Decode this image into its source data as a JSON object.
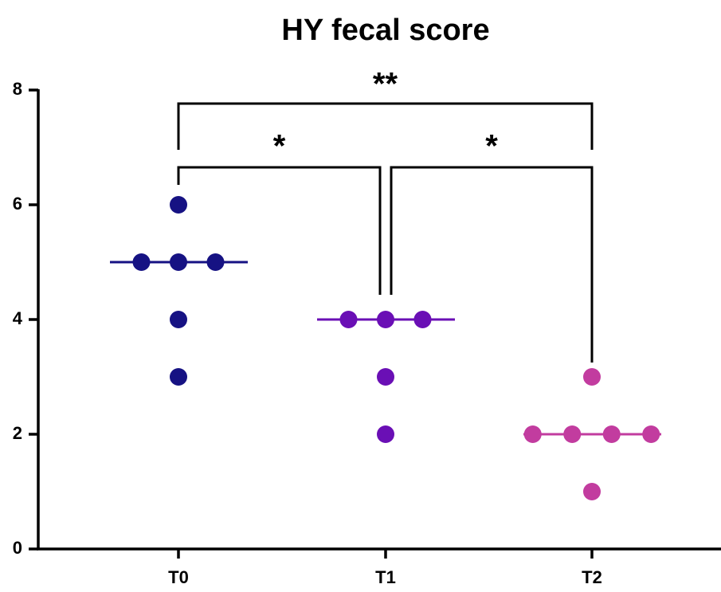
{
  "chart_data": {
    "type": "dot",
    "title": "HY fecal score",
    "groups": [
      {
        "name": "T0",
        "color": "#161283",
        "values": [
          6,
          5,
          5,
          5,
          4,
          3
        ],
        "median": 5
      },
      {
        "name": "T1",
        "color": "#6a0fb5",
        "values": [
          4,
          4,
          4,
          3,
          2
        ],
        "median": 4
      },
      {
        "name": "T2",
        "color": "#c23c9f",
        "values": [
          3,
          2,
          2,
          2,
          2,
          1
        ],
        "median": 2
      }
    ],
    "ylim": [
      0,
      8
    ],
    "yticks": [
      0,
      2,
      4,
      6,
      8
    ],
    "annotations": [
      {
        "label": "**",
        "from": "T0",
        "to": "T2"
      },
      {
        "label": "*",
        "from": "T0",
        "to": "T1"
      },
      {
        "label": "*",
        "from": "T1",
        "to": "T2"
      }
    ]
  }
}
